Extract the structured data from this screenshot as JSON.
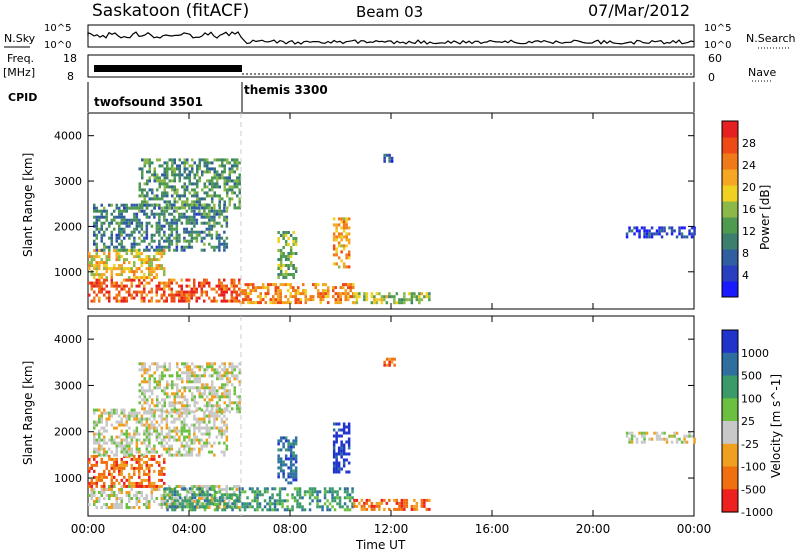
{
  "header": {
    "station": "Saskatoon (fitACF)",
    "beam": "Beam 03",
    "date": "07/Mar/2012"
  },
  "strip_panels": {
    "nsky_label": "N.Sky",
    "nsky_ticks": [
      "10^5",
      "10^0"
    ],
    "nsearch_label": "N.Search",
    "freq_label_1": "Freq.",
    "freq_label_2": "[MHz]",
    "freq_ticks": [
      "18",
      "8"
    ],
    "nave_ticks": [
      "60",
      "0"
    ],
    "nave_label": "Nave",
    "cpid_label": "CPID",
    "cpid_segments": [
      {
        "name": "twofsound 3501",
        "start_hour": 0,
        "end_hour": 6
      },
      {
        "name": "themis 3300",
        "start_hour": 6,
        "end_hour": 24
      }
    ]
  },
  "chart_data": [
    {
      "type": "heatmap",
      "name": "power-panel",
      "xlabel": "",
      "ylabel": "Slant Range [km]",
      "xlim": [
        0,
        24
      ],
      "ylim": [
        180,
        4500
      ],
      "yticks": [
        1000,
        2000,
        3000,
        4000
      ],
      "colorbar": {
        "label": "Power [dB]",
        "ticks": [
          "4",
          "8",
          "12",
          "16",
          "20",
          "24",
          "28"
        ],
        "range": [
          0,
          32
        ],
        "colors": [
          "#1a1aff",
          "#2a3fbf",
          "#2f5fa0",
          "#3d7f6f",
          "#4e9a4e",
          "#8cb84a",
          "#f0d020",
          "#f5a623",
          "#f07a1a",
          "#ee4a15",
          "#e62020"
        ]
      },
      "echo_regions": [
        {
          "x0": 0.0,
          "x1": 6.0,
          "y0": 350,
          "y1": 850,
          "level": 27
        },
        {
          "x0": 0.0,
          "x1": 3.0,
          "y0": 850,
          "y1": 1500,
          "level": 20
        },
        {
          "x0": 0.2,
          "x1": 5.5,
          "y0": 1500,
          "y1": 2500,
          "level": 10
        },
        {
          "x0": 2.0,
          "x1": 6.0,
          "y0": 2400,
          "y1": 3500,
          "level": 12
        },
        {
          "x0": 6.0,
          "x1": 10.5,
          "y0": 300,
          "y1": 750,
          "level": 24
        },
        {
          "x0": 10.5,
          "x1": 13.5,
          "y0": 300,
          "y1": 550,
          "level": 16
        },
        {
          "x0": 7.5,
          "x1": 8.2,
          "y0": 900,
          "y1": 1900,
          "level": 14
        },
        {
          "x0": 9.7,
          "x1": 10.3,
          "y0": 1100,
          "y1": 2200,
          "level": 22
        },
        {
          "x0": 11.7,
          "x1": 12.1,
          "y0": 3450,
          "y1": 3600,
          "level": 6
        },
        {
          "x0": 21.3,
          "x1": 24.0,
          "y0": 1750,
          "y1": 2000,
          "level": 4
        }
      ]
    },
    {
      "type": "heatmap",
      "name": "velocity-panel",
      "xlabel": "Time UT",
      "ylabel": "Slant Range [km]",
      "xticks": [
        "00:00",
        "04:00",
        "08:00",
        "12:00",
        "16:00",
        "20:00",
        "00:00"
      ],
      "xlim": [
        0,
        24
      ],
      "ylim": [
        180,
        4500
      ],
      "yticks": [
        1000,
        2000,
        3000,
        4000
      ],
      "colorbar": {
        "label": "Velocity [m s^-1]",
        "ticks": [
          "1000",
          "500",
          "100",
          "25",
          "-25",
          "-100",
          "-500",
          "-1000"
        ],
        "colors": [
          "#2233cc",
          "#2e6fa0",
          "#3a9a6a",
          "#6cc040",
          "#c8c8c8",
          "#f0a020",
          "#f07010",
          "#ee2020"
        ]
      },
      "echo_regions": [
        {
          "x0": 0.0,
          "x1": 6.0,
          "y0": 350,
          "y1": 850,
          "velocity": 0
        },
        {
          "x0": 0.0,
          "x1": 3.0,
          "y0": 850,
          "y1": 1500,
          "velocity": -100
        },
        {
          "x0": 0.2,
          "x1": 5.5,
          "y0": 1500,
          "y1": 2500,
          "velocity": 0
        },
        {
          "x0": 2.0,
          "x1": 6.0,
          "y0": 2400,
          "y1": 3500,
          "velocity": 0
        },
        {
          "x0": 3.0,
          "x1": 10.5,
          "y0": 300,
          "y1": 800,
          "velocity": 100
        },
        {
          "x0": 10.5,
          "x1": 13.5,
          "y0": 300,
          "y1": 550,
          "velocity": -100
        },
        {
          "x0": 7.5,
          "x1": 8.2,
          "y0": 900,
          "y1": 1900,
          "velocity": 500
        },
        {
          "x0": 9.7,
          "x1": 10.3,
          "y0": 1100,
          "y1": 2200,
          "velocity": 1000
        },
        {
          "x0": 11.7,
          "x1": 12.1,
          "y0": 3450,
          "y1": 3600,
          "velocity": -100
        },
        {
          "x0": 21.3,
          "x1": 24.0,
          "y0": 1750,
          "y1": 2000,
          "velocity": 0
        }
      ]
    }
  ]
}
